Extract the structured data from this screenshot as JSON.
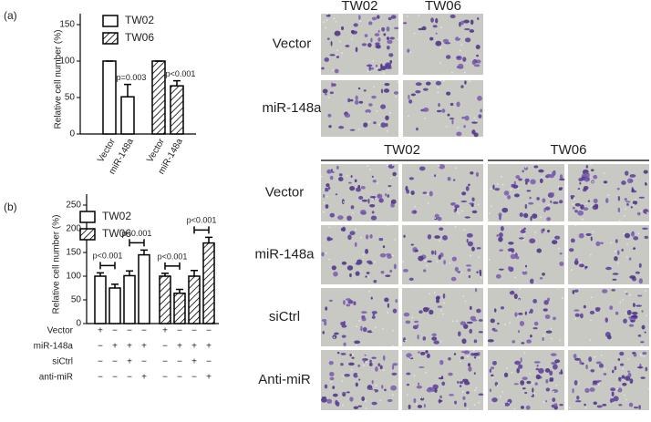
{
  "figure": {
    "panel_labels": [
      "(a)",
      "(b)"
    ]
  },
  "chart_data": [
    {
      "type": "bar",
      "y_label": "Relative cell number (%)",
      "categories": [
        "Vector",
        "miR-148a"
      ],
      "series": [
        {
          "name": "TW02",
          "color": "#ffffff",
          "hatch": false,
          "values": [
            100,
            51
          ],
          "errors": [
            0,
            17
          ]
        },
        {
          "name": "TW06",
          "color": "#ffffff",
          "hatch": true,
          "values": [
            100,
            66
          ],
          "errors": [
            0,
            7
          ]
        }
      ],
      "annotations": [
        "p=0.003",
        "p<0.001"
      ],
      "ylim": [
        0,
        150
      ],
      "yticks": [
        0,
        50,
        100,
        150
      ]
    },
    {
      "type": "bar",
      "y_label": "Relative cell number (%)",
      "categories": [
        "Vector",
        "miR-148a",
        "siCtrl",
        "anti-miR"
      ],
      "series": [
        {
          "name": "TW02",
          "color": "#ffffff",
          "hatch": false,
          "values": [
            100,
            75,
            101,
            145
          ],
          "errors": [
            7,
            8,
            10,
            10
          ]
        },
        {
          "name": "TW06",
          "color": "#ffffff",
          "hatch": true,
          "values": [
            100,
            64,
            100,
            170
          ],
          "errors": [
            6,
            8,
            12,
            12
          ]
        }
      ],
      "conditions": [
        {
          "name": "Vector",
          "marks": [
            "+",
            "−",
            "−",
            "−"
          ]
        },
        {
          "name": "miR-148a",
          "marks": [
            "−",
            "+",
            "+",
            "+"
          ]
        },
        {
          "name": "siCtrl",
          "marks": [
            "−",
            "−",
            "+",
            "−"
          ]
        },
        {
          "name": "anti-miR",
          "marks": [
            "−",
            "−",
            "−",
            "+"
          ]
        }
      ],
      "annotations": [
        "p<0.001",
        "p<0.001",
        "p<0.001",
        "p<0.001"
      ],
      "ylim": [
        0,
        250
      ],
      "yticks": [
        0,
        50,
        100,
        150,
        200,
        250
      ]
    }
  ],
  "images": [
    {
      "columns": [
        "TW02",
        "TW06"
      ],
      "rows": [
        "Vector",
        "miR-148a"
      ]
    },
    {
      "columns": [
        "TW02",
        "TW06"
      ],
      "rows": [
        "Vector",
        "miR-148a",
        "siCtrl",
        "Anti-miR"
      ]
    }
  ]
}
